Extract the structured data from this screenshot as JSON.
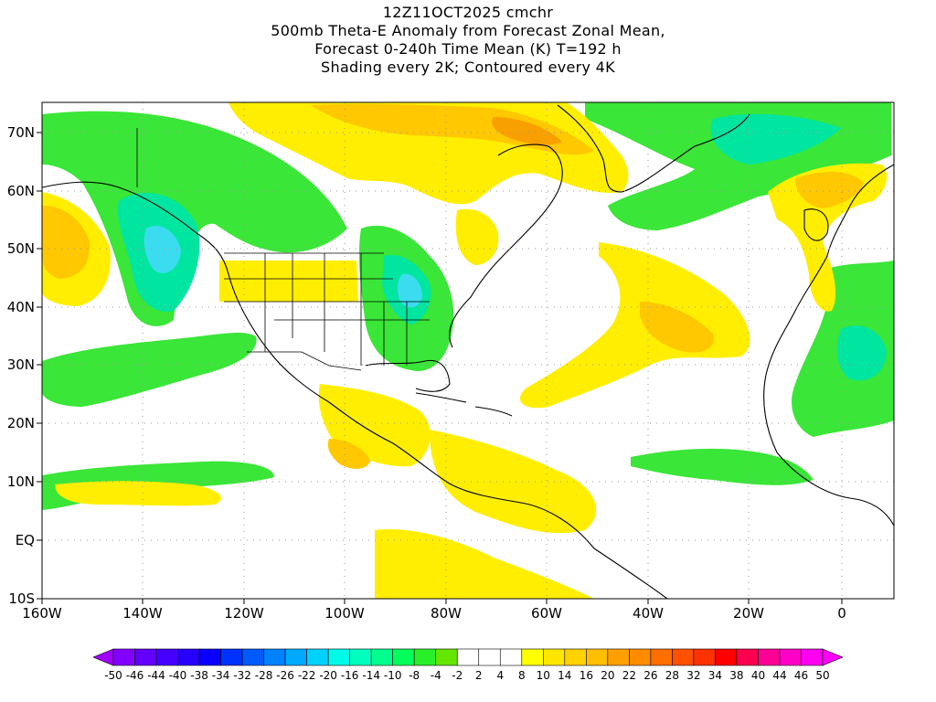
{
  "title": {
    "line1": "12Z11OCT2025 cmchr",
    "line2": "500mb Theta-E Anomaly from Forecast Zonal Mean,",
    "line3": "Forecast 0-240h Time Mean (K) T=192 h",
    "line4": "Shading every 2K; Contoured every 4K"
  },
  "axes": {
    "lat_labels": [
      "70N",
      "60N",
      "50N",
      "40N",
      "30N",
      "20N",
      "10N",
      "EQ",
      "10S"
    ],
    "lon_labels": [
      "160W",
      "140W",
      "120W",
      "100W",
      "80W",
      "60W",
      "40W",
      "20W",
      "0"
    ]
  },
  "colorbar": {
    "labels": [
      "-50",
      "-46",
      "-44",
      "-40",
      "-38",
      "-34",
      "-32",
      "-28",
      "-26",
      "-22",
      "-20",
      "-16",
      "-14",
      "-10",
      "-8",
      "-4",
      "-2",
      "2",
      "4",
      "8",
      "10",
      "14",
      "16",
      "20",
      "22",
      "26",
      "28",
      "32",
      "34",
      "38",
      "40",
      "44",
      "46",
      "50"
    ],
    "colors": [
      "#a000ff",
      "#8200ff",
      "#6400ff",
      "#4600ff",
      "#2800ff",
      "#0a00ff",
      "#0032ff",
      "#005aff",
      "#0082ff",
      "#00aaff",
      "#00d2ff",
      "#00fae6",
      "#00ffbe",
      "#00ff8c",
      "#00ff5a",
      "#28f028",
      "#64e600",
      "#ffffff",
      "#ffffff",
      "#ffffff",
      "#ffff00",
      "#ffe600",
      "#ffd200",
      "#ffbe00",
      "#ffa000",
      "#ff8c00",
      "#ff6e00",
      "#ff5000",
      "#ff3200",
      "#ff0000",
      "#ff0050",
      "#ff0096",
      "#ff00c8",
      "#ff00f0",
      "#ff00ff"
    ]
  },
  "fields": {
    "negative_color": "#3ae637",
    "negative_strong_color": "#00e6a0",
    "negative_core_color": "#3cdcf0",
    "positive_color": "#ffee00",
    "positive_strong_color": "#ffc800",
    "positive_core_color": "#f8a000",
    "coast_color": "#000000"
  }
}
